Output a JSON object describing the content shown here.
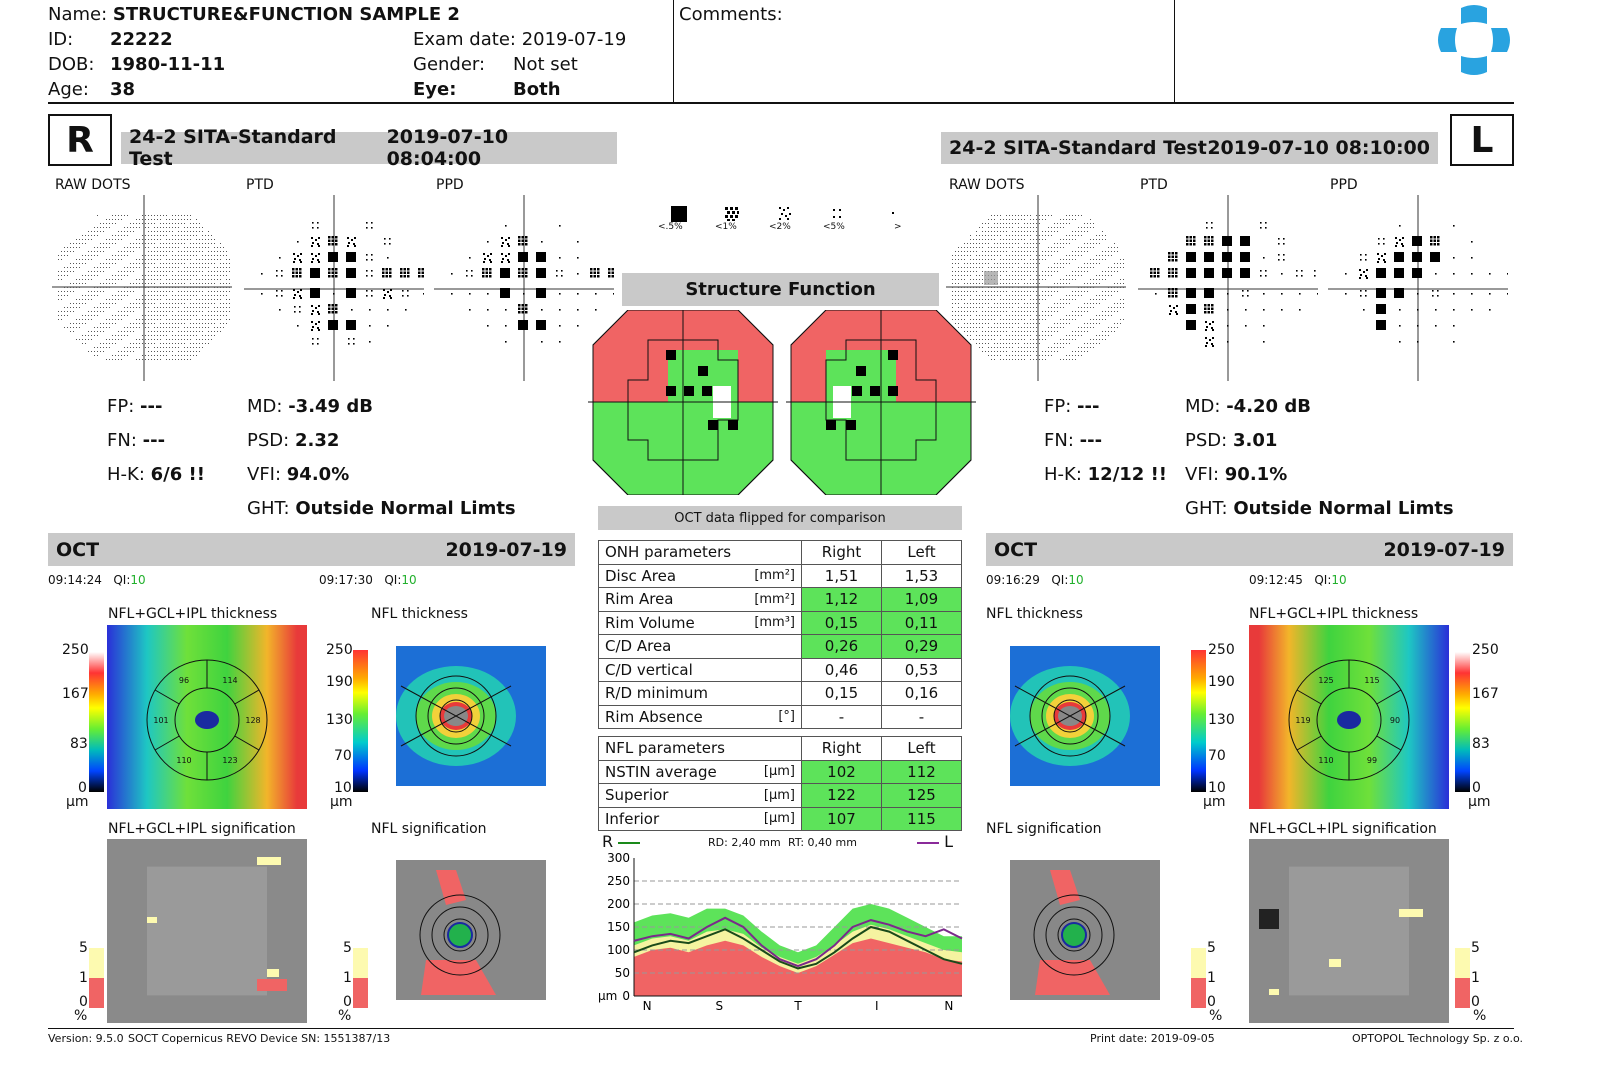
{
  "patient": {
    "name_label": "Name:",
    "name": "STRUCTURE&FUNCTION SAMPLE 2",
    "id_label": "ID:",
    "id": "22222",
    "dob_label": "DOB:",
    "dob": "1980-11-11",
    "age_label": "Age:",
    "age": "38",
    "exam_label": "Exam date:",
    "exam": "2019-07-19",
    "gender_label": "Gender:",
    "gender": "Not set",
    "eye_label": "Eye:",
    "eye": "Both"
  },
  "comments_label": "Comments:",
  "right": {
    "eye": "R",
    "test": "24-2 SITA-Standard Test",
    "datetime": "2019-07-10 08:04:00",
    "fp_label": "FP:",
    "fp": "---",
    "fn_label": "FN:",
    "fn": "---",
    "hk_label": "H-K:",
    "hk": "6/6 !!",
    "md_label": "MD:",
    "md": "-3.49 dB",
    "psd_label": "PSD:",
    "psd": "2.32",
    "vfi_label": "VFI:",
    "vfi": "94.0%",
    "ght_label": "GHT:",
    "ght": "Outside Normal Limts",
    "oct": "OCT",
    "oct_date": "2019-07-19",
    "t1": "09:14:24",
    "t2": "09:17:30",
    "qi_label": "QI:",
    "qi1": "10",
    "qi2": "10"
  },
  "left": {
    "eye": "L",
    "test": "24-2 SITA-Standard Test",
    "datetime": "2019-07-10 08:10:00",
    "fp_label": "FP:",
    "fp": "---",
    "fn_label": "FN:",
    "fn": "---",
    "hk_label": "H-K:",
    "hk": "12/12 !!",
    "md_label": "MD:",
    "md": "-4.20 dB",
    "psd_label": "PSD:",
    "psd": "3.01",
    "vfi_label": "VFI:",
    "vfi": "90.1%",
    "ght_label": "GHT:",
    "ght": "Outside Normal Limts",
    "oct": "OCT",
    "oct_date": "2019-07-19",
    "t1": "09:16:29",
    "t2": "09:12:45",
    "qi_label": "QI:",
    "qi1": "10",
    "qi2": "10"
  },
  "plot_labels": {
    "raw": "RAW DOTS",
    "ptd": "PTD",
    "ppd": "PPD"
  },
  "legend": [
    "<.5%",
    "<1%",
    "<2%",
    "<5%",
    ">"
  ],
  "structure_function": "Structure Function",
  "oct_flipped": "OCT data flipped for comparison",
  "map_labels": {
    "gcl_thick": "NFL+GCL+IPL thickness",
    "nfl_thick": "NFL thickness",
    "gcl_sig": "NFL+GCL+IPL signification",
    "nfl_sig": "NFL signification"
  },
  "scales": {
    "gcl": [
      "250",
      "167",
      "83",
      "0"
    ],
    "nfl": [
      "250",
      "190",
      "130",
      "70",
      "10"
    ],
    "unit": "µm",
    "sig": [
      "5",
      "1",
      "0"
    ],
    "sig_unit": "%"
  },
  "sectors": {
    "right": [
      "114",
      "128",
      "123",
      "110",
      "101",
      "96"
    ],
    "left": [
      "115",
      "90",
      "99",
      "110",
      "119",
      "125"
    ]
  },
  "onh": {
    "header": [
      "ONH parameters",
      "Right",
      "Left"
    ],
    "rows": [
      {
        "name": "Disc Area",
        "unit": "[mm²]",
        "r": "1,51",
        "l": "1,53",
        "g": false
      },
      {
        "name": "Rim Area",
        "unit": "[mm²]",
        "r": "1,12",
        "l": "1,09",
        "g": true
      },
      {
        "name": "Rim Volume",
        "unit": "[mm³]",
        "r": "0,15",
        "l": "0,11",
        "g": true
      },
      {
        "name": "C/D Area",
        "unit": "",
        "r": "0,26",
        "l": "0,29",
        "g": true
      },
      {
        "name": "C/D vertical",
        "unit": "",
        "r": "0,46",
        "l": "0,53",
        "g": false
      },
      {
        "name": "R/D minimum",
        "unit": "",
        "r": "0,15",
        "l": "0,16",
        "g": false
      },
      {
        "name": "Rim Absence",
        "unit": "[°]",
        "r": "-",
        "l": "-",
        "g": false
      }
    ]
  },
  "nfl": {
    "header": [
      "NFL parameters",
      "Right",
      "Left"
    ],
    "rows": [
      {
        "name": "NSTIN average",
        "unit": "[µm]",
        "r": "102",
        "l": "112",
        "g": true
      },
      {
        "name": "Superior",
        "unit": "[µm]",
        "r": "122",
        "l": "125",
        "g": true
      },
      {
        "name": "Inferior",
        "unit": "[µm]",
        "r": "107",
        "l": "115",
        "g": true
      }
    ]
  },
  "chart_data": {
    "type": "line",
    "title": "",
    "legend_r": "R",
    "legend_l": "L",
    "rd": "RD: 2,40 mm",
    "rt": "RT: 0,40 mm",
    "ylabel": "µm",
    "y_ticks": [
      "300",
      "250",
      "200",
      "150",
      "100",
      "50",
      "0"
    ],
    "ylim": [
      0,
      300
    ],
    "x_ticks": [
      "N",
      "S",
      "T",
      "I",
      "N"
    ],
    "x": [
      0,
      20,
      40,
      60,
      80,
      100,
      120,
      140,
      160,
      180,
      200,
      220,
      240,
      260,
      280,
      300,
      320,
      340,
      360
    ],
    "series": [
      {
        "name": "R",
        "color": "#1a4a1a",
        "values": [
          95,
          110,
          120,
          115,
          130,
          145,
          125,
          100,
          75,
          60,
          70,
          95,
          125,
          150,
          140,
          120,
          100,
          80,
          70
        ]
      },
      {
        "name": "L",
        "color": "#7a2a8a",
        "values": [
          120,
          130,
          135,
          125,
          150,
          170,
          150,
          110,
          80,
          65,
          80,
          110,
          150,
          165,
          155,
          140,
          130,
          145,
          125
        ]
      }
    ],
    "normal_band": {
      "green_upper": [
        160,
        175,
        180,
        170,
        190,
        190,
        175,
        140,
        110,
        95,
        110,
        150,
        190,
        200,
        190,
        170,
        150,
        130,
        130
      ],
      "yellow_upper": [
        110,
        125,
        130,
        120,
        140,
        145,
        135,
        105,
        85,
        70,
        85,
        110,
        140,
        155,
        145,
        130,
        115,
        100,
        95
      ],
      "red_upper": [
        85,
        100,
        105,
        95,
        110,
        120,
        110,
        85,
        65,
        50,
        65,
        90,
        115,
        125,
        115,
        105,
        95,
        80,
        75
      ]
    }
  },
  "footer": {
    "version": "Version: 9.5.0",
    "device": "SOCT Copernicus REVO",
    "sn": "Device SN: 1551387/13",
    "print": "Print date: 2019-09-05",
    "company": "OPTOPOL Technology Sp. z o.o."
  },
  "colors": {
    "normal": "#5de35a",
    "abnormal": "#f06464",
    "logo": "#29a3e0"
  }
}
